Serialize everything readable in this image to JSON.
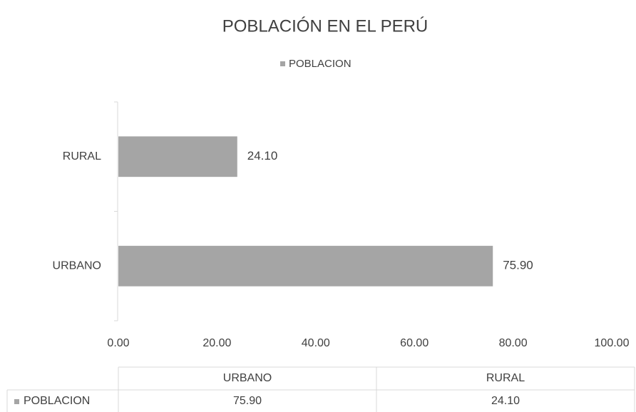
{
  "chart_data": {
    "type": "bar",
    "orientation": "horizontal",
    "title": "POBLACIÓN EN EL PERÚ",
    "categories": [
      "URBANO",
      "RURAL"
    ],
    "series": [
      {
        "name": "POBLACION",
        "color": "#a5a5a5",
        "values": [
          75.9,
          24.1
        ],
        "value_labels": [
          "75.90",
          "24.10"
        ]
      }
    ],
    "xlim": [
      0,
      100
    ],
    "xticks": [
      {
        "value": 0,
        "label": "0.00"
      },
      {
        "value": 20,
        "label": "20.00"
      },
      {
        "value": 40,
        "label": "40.00"
      },
      {
        "value": 60,
        "label": "60.00"
      },
      {
        "value": 80,
        "label": "80.00"
      },
      {
        "value": 100,
        "label": "100.00"
      }
    ],
    "legend": "top",
    "data_table": true
  }
}
